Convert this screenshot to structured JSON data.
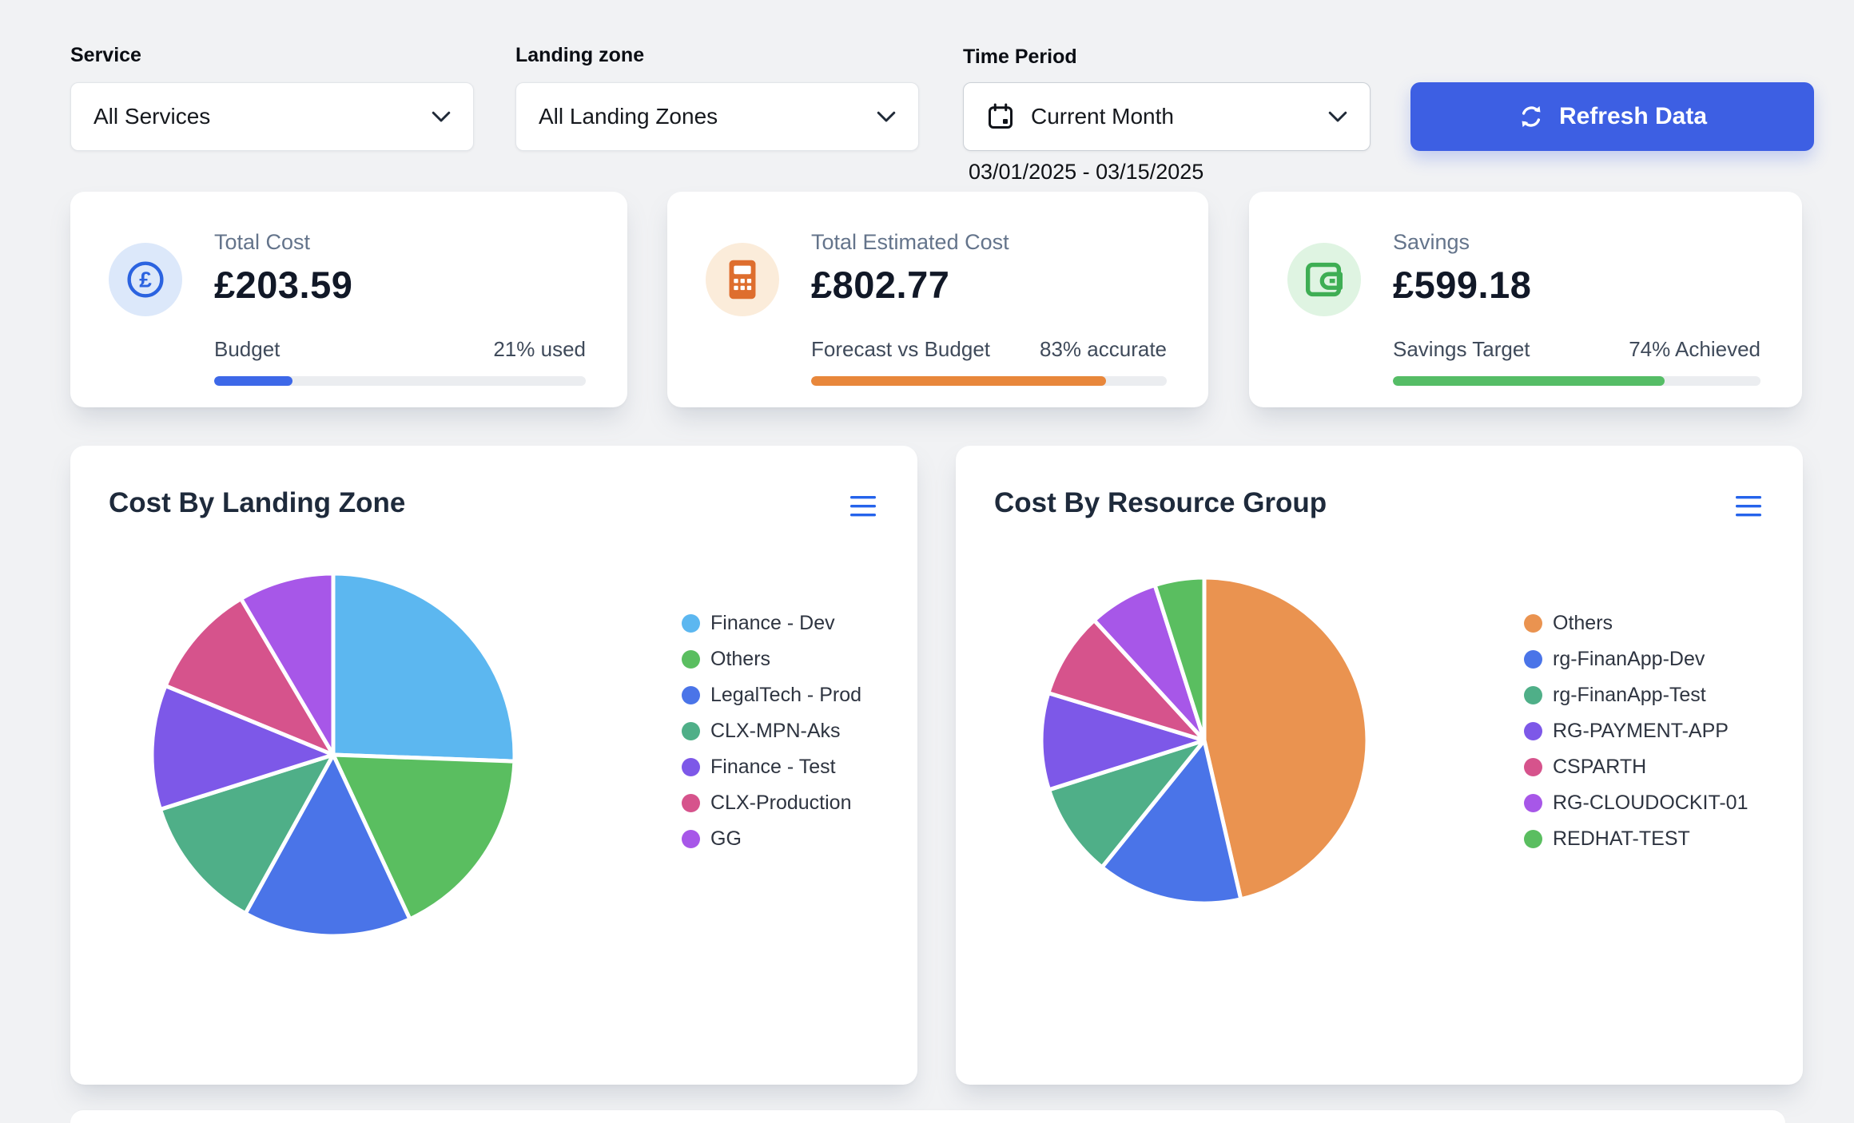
{
  "filters": {
    "service": {
      "label": "Service",
      "value": "All Services"
    },
    "landing_zone": {
      "label": "Landing zone",
      "value": "All Landing Zones"
    },
    "time_period": {
      "label": "Time Period",
      "value": "Current Month",
      "range": "03/01/2025 - 03/15/2025"
    }
  },
  "refresh_button": {
    "label": "Refresh Data",
    "color": "#3D5FE3"
  },
  "kpi_cards": [
    {
      "title": "Total Cost",
      "value": "£203.59",
      "progress_label": "Budget",
      "progress_status": "21% used",
      "progress_pct": 21,
      "accent": "#3D68E8",
      "icon": "pound-icon",
      "icon_bg": "#DCE8FA",
      "icon_color": "#2B63E0"
    },
    {
      "title": "Total Estimated Cost",
      "value": "£802.77",
      "progress_label": "Forecast vs Budget",
      "progress_status": "83% accurate",
      "progress_pct": 83,
      "accent": "#E8873B",
      "icon": "calculator-icon",
      "icon_bg": "#FBECDA",
      "icon_color": "#DE6E2E"
    },
    {
      "title": "Savings",
      "value": "£599.18",
      "progress_label": "Savings Target",
      "progress_status": "74% Achieved",
      "progress_pct": 74,
      "accent": "#55BD66",
      "icon": "wallet-icon",
      "icon_bg": "#DFF4E2",
      "icon_color": "#3EAE54"
    }
  ],
  "chart_data": [
    {
      "type": "pie",
      "title": "Cost By Landing Zone",
      "legend_position": "right",
      "labels": [
        "Finance - Dev",
        "Others",
        "LegalTech - Prod",
        "CLX-MPN-Aks",
        "Finance - Test",
        "CLX-Production",
        "GG"
      ],
      "values": [
        25.6,
        17.5,
        15.0,
        12.1,
        11.1,
        10.3,
        8.5
      ],
      "unit": "percent",
      "colors": [
        "#5CB7F0",
        "#5ABE60",
        "#4A74E8",
        "#4FAF88",
        "#7D58E8",
        "#D6538C",
        "#A757E8"
      ],
      "start_angle_deg": 0,
      "direction": "clockwise"
    },
    {
      "type": "pie",
      "title": "Cost By Resource Group",
      "legend_position": "right",
      "labels": [
        "Others",
        "rg-FinanApp-Dev",
        "rg-FinanApp-Test",
        "RG-PAYMENT-APP",
        "CSPARTH",
        "RG-CLOUDOCKIT-01",
        "REDHAT-TEST"
      ],
      "values": [
        46.4,
        14.4,
        9.3,
        9.6,
        8.5,
        6.9,
        4.9
      ],
      "unit": "percent",
      "colors": [
        "#EA9350",
        "#4A74E8",
        "#4FAF88",
        "#7D58E8",
        "#D6538C",
        "#A757E8",
        "#5ABE60"
      ],
      "start_angle_deg": 0,
      "direction": "clockwise"
    }
  ]
}
